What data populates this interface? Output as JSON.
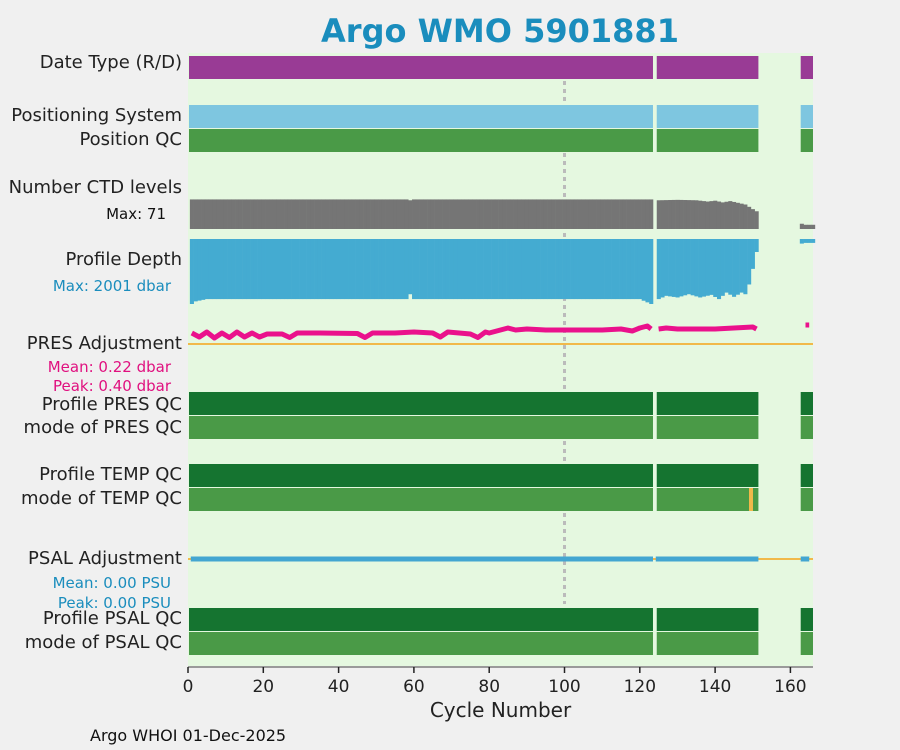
{
  "title": "Argo WMO 5901881",
  "footer": "Argo WHOI 01-Dec-2025",
  "colors": {
    "plot_bg": "#e5f8e0",
    "purple": "#993b95",
    "light_blue": "#7ec6e0",
    "green": "#4a9a47",
    "dark_green": "#157430",
    "gray": "#757575",
    "profile_blue": "#44abd1",
    "pink": "#ea118c",
    "orange": "#f1b94a",
    "psal_blue": "#43a6d1",
    "title": "#1a8dbd"
  },
  "labels": {
    "date_type": "Date Type (R/D)",
    "positioning_system": "Positioning System",
    "position_qc": "Position QC",
    "num_ctd_levels": "Number CTD levels",
    "ctd_max": "Max: 71",
    "profile_depth": "Profile Depth",
    "depth_max": "Max: 2001 dbar",
    "pres_adjustment": "PRES Adjustment",
    "pres_mean": "Mean: 0.22 dbar",
    "pres_peak": "Peak: 0.40 dbar",
    "profile_pres_qc": "Profile PRES QC",
    "mode_pres_qc": "mode of PRES QC",
    "profile_temp_qc": "Profile TEMP QC",
    "mode_temp_qc": "mode of TEMP QC",
    "psal_adjustment": "PSAL Adjustment",
    "psal_mean": "Mean: 0.00 PSU",
    "psal_peak": "Peak: 0.00 PSU",
    "profile_psal_qc": "Profile PSAL QC",
    "mode_psal_qc": "mode of PSAL QC"
  },
  "chart_data": {
    "type": "bar",
    "xlabel": "Cycle Number",
    "xlim": [
      0,
      166
    ],
    "xticks": [
      "0",
      "20",
      "40",
      "60",
      "80",
      "100",
      "120",
      "140",
      "160"
    ],
    "vline_cycle": 100,
    "segments": [
      [
        1,
        123.5
      ],
      [
        124.5,
        151.5
      ],
      [
        163,
        166
      ]
    ],
    "tracks": [
      {
        "name": "Date Type (R/D)",
        "color": "purple"
      },
      {
        "name": "Positioning System",
        "color": "light_blue"
      },
      {
        "name": "Position QC",
        "color": "green"
      },
      {
        "name": "Profile PRES QC",
        "color": "dark_green"
      },
      {
        "name": "mode of PRES QC",
        "color": "green"
      },
      {
        "name": "Profile TEMP QC",
        "color": "dark_green"
      },
      {
        "name": "mode of TEMP QC",
        "color": "green",
        "flag_cycle": 149,
        "flag_color": "orange"
      },
      {
        "name": "Profile PSAL QC",
        "color": "dark_green"
      },
      {
        "name": "mode of PSAL QC",
        "color": "green"
      }
    ],
    "ctd_levels": {
      "max": 71,
      "x": [
        1,
        10,
        20,
        30,
        40,
        50,
        58,
        59,
        60,
        70,
        80,
        90,
        100,
        110,
        123,
        125,
        130,
        135,
        138,
        140,
        142,
        144,
        146,
        148,
        150,
        151,
        164,
        165
      ],
      "values": [
        70,
        70,
        70,
        70,
        70,
        70,
        70,
        68,
        70,
        70,
        70,
        70,
        70,
        70,
        70,
        68,
        69,
        68,
        65,
        67,
        63,
        66,
        62,
        58,
        47,
        42,
        10,
        10
      ]
    },
    "profile_depth": {
      "max": 2001,
      "x": [
        1,
        2,
        5,
        10,
        20,
        30,
        40,
        50,
        58,
        59,
        60,
        70,
        80,
        90,
        100,
        110,
        120,
        123,
        125,
        127,
        130,
        133,
        136,
        139,
        141,
        143,
        145,
        147,
        148,
        149,
        150,
        151,
        164,
        165
      ],
      "values": [
        2001,
        1920,
        1850,
        1850,
        1850,
        1850,
        1850,
        1850,
        1850,
        1700,
        1850,
        1850,
        1850,
        1850,
        1850,
        1850,
        1850,
        2001,
        1850,
        1750,
        1800,
        1700,
        1800,
        1720,
        1850,
        1650,
        1780,
        1650,
        1700,
        1400,
        920,
        400,
        120,
        120
      ]
    },
    "pres_adjustment": {
      "unit": "dbar",
      "mean": 0.22,
      "peak": 0.4,
      "x": [
        1,
        3,
        5,
        7,
        9,
        11,
        13,
        15,
        17,
        19,
        21,
        25,
        27,
        29,
        35,
        45,
        47,
        49,
        55,
        60,
        65,
        67,
        69,
        75,
        77,
        79,
        80,
        85,
        87,
        90,
        95,
        100,
        105,
        110,
        115,
        118,
        120,
        122,
        123,
        125,
        127,
        130,
        135,
        140,
        145,
        150,
        151,
        164,
        165
      ],
      "values": [
        0.22,
        0.14,
        0.24,
        0.12,
        0.22,
        0.13,
        0.24,
        0.14,
        0.22,
        0.14,
        0.2,
        0.2,
        0.13,
        0.22,
        0.22,
        0.21,
        0.13,
        0.22,
        0.22,
        0.24,
        0.22,
        0.14,
        0.24,
        0.2,
        0.13,
        0.24,
        0.22,
        0.32,
        0.28,
        0.3,
        0.28,
        0.28,
        0.28,
        0.28,
        0.3,
        0.26,
        0.32,
        0.36,
        0.3,
        0.3,
        0.32,
        0.3,
        0.3,
        0.3,
        0.32,
        0.34,
        0.3,
        0.38,
        0.38
      ]
    },
    "psal_adjustment": {
      "unit": "PSU",
      "mean": 0.0,
      "peak": 0.0
    }
  }
}
